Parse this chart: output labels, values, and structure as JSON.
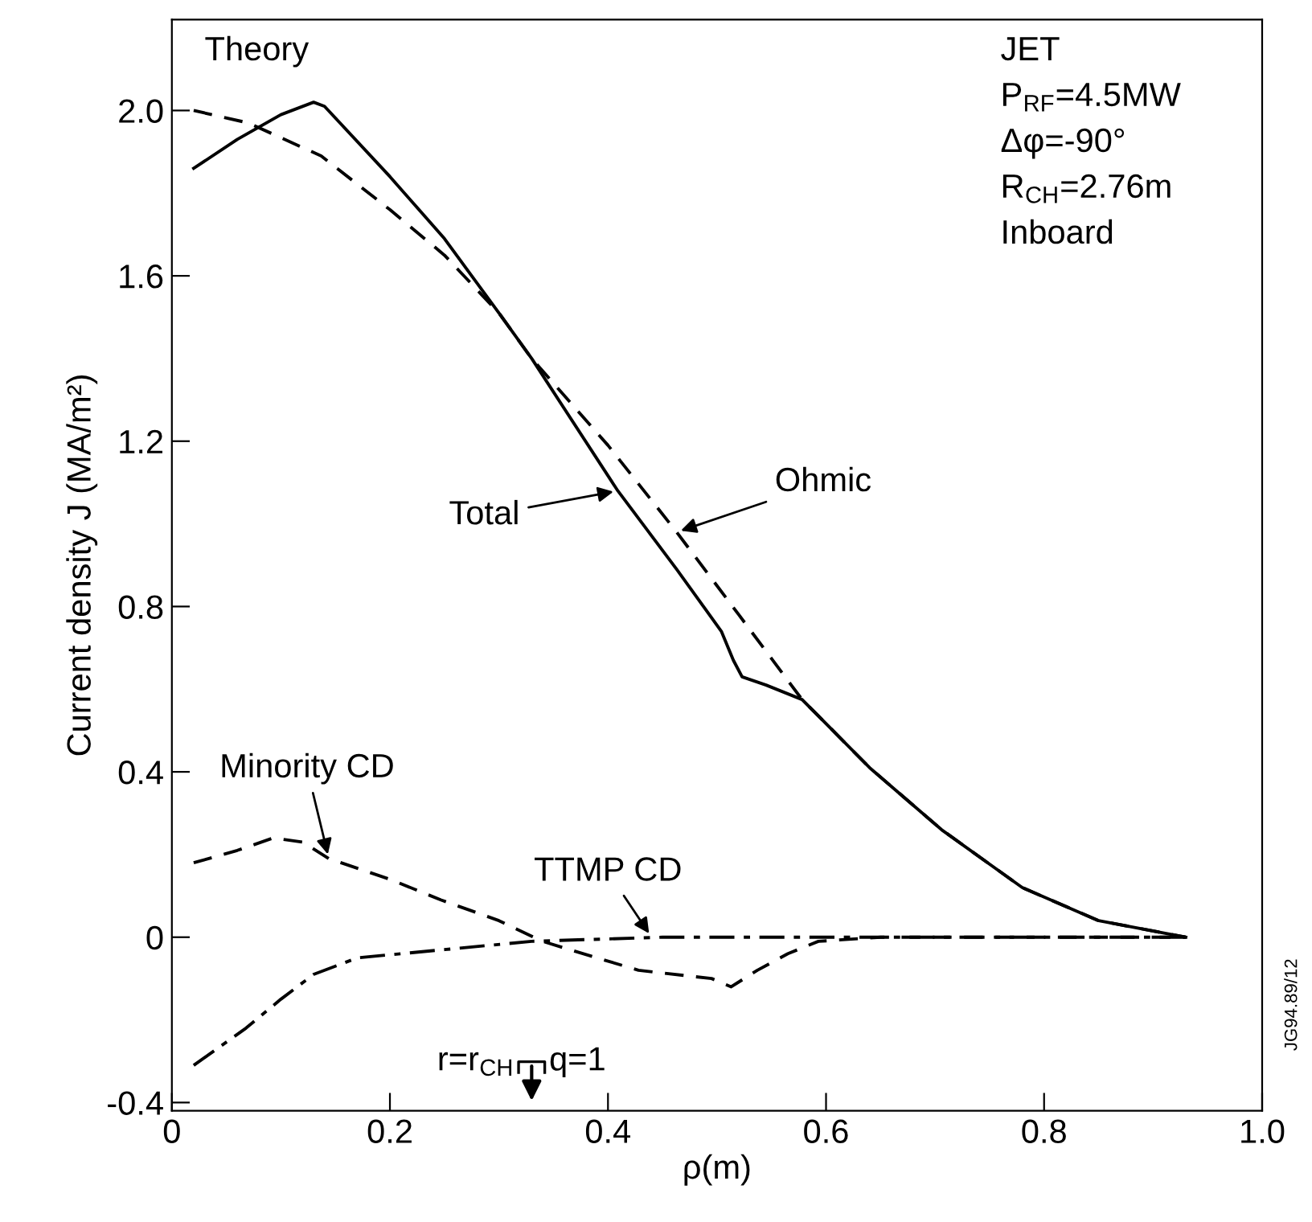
{
  "chart_data": {
    "type": "line",
    "xlabel": "ρ(m)",
    "ylabel": "Current density J (MA/m²)",
    "xlim": [
      0,
      1.0
    ],
    "ylim": [
      -0.42,
      2.22
    ],
    "xticks": [
      0,
      0.2,
      0.4,
      0.6,
      0.8,
      {
        "value": 1.0,
        "label": "1.0"
      }
    ],
    "yticks": [
      {
        "value": -0.4,
        "label": "-0.4"
      },
      0,
      0.4,
      0.8,
      1.2,
      1.6,
      {
        "value": 2.0,
        "label": "2.0"
      }
    ],
    "grid": false,
    "legend": false,
    "series": [
      {
        "color": "#000000",
        "line_style": "solid",
        "x": [
          0.02,
          0.06,
          0.1,
          0.13,
          0.14,
          0.2,
          0.25,
          0.3,
          0.33,
          0.409,
          0.463,
          0.504,
          0.515,
          0.523,
          0.545,
          0.578,
          0.64,
          0.706,
          0.78,
          0.85,
          0.93
        ],
        "values": [
          1.86,
          1.93,
          1.99,
          2.02,
          2.01,
          1.84,
          1.69,
          1.51,
          1.4,
          1.08,
          0.89,
          0.74,
          0.67,
          0.63,
          0.61,
          0.575,
          0.41,
          0.26,
          0.12,
          0.04,
          0.0
        ]
      },
      {
        "color": "#000000",
        "line_style": "dashed",
        "x": [
          0.02,
          0.07,
          0.137,
          0.2,
          0.25,
          0.3,
          0.33,
          0.4,
          0.463,
          0.52,
          0.578,
          0.64,
          0.706,
          0.78,
          0.85,
          0.93
        ],
        "values": [
          2.0,
          1.97,
          1.89,
          1.76,
          1.65,
          1.51,
          1.4,
          1.19,
          0.98,
          0.78,
          0.575,
          0.41,
          0.26,
          0.12,
          0.04,
          0.0
        ]
      },
      {
        "color": "#000000",
        "line_style": "dashed",
        "x": [
          0.02,
          0.06,
          0.093,
          0.12,
          0.144,
          0.2,
          0.247,
          0.3,
          0.34,
          0.39,
          0.428,
          0.495,
          0.513,
          0.537,
          0.565,
          0.593,
          0.65,
          0.8,
          0.93
        ],
        "values": [
          0.18,
          0.21,
          0.24,
          0.23,
          0.19,
          0.14,
          0.09,
          0.04,
          -0.01,
          -0.05,
          -0.08,
          -0.1,
          -0.12,
          -0.08,
          -0.04,
          -0.01,
          0.0,
          0.0,
          0.0
        ]
      },
      {
        "color": "#000000",
        "line_style": "dashdot",
        "x": [
          0.02,
          0.068,
          0.1,
          0.13,
          0.17,
          0.25,
          0.33,
          0.45,
          0.6,
          0.8,
          0.93
        ],
        "values": [
          -0.31,
          -0.22,
          -0.15,
          -0.09,
          -0.05,
          -0.03,
          -0.01,
          0.0,
          0.0,
          0.0,
          0.0
        ]
      }
    ],
    "annotations": [
      "Theory",
      "JET",
      "P$_{RF}$=4.5MW",
      "Δφ=-90°",
      "R$_{CH}$=2.76m",
      "Inboard",
      {
        "text": "Total",
        "x": 0.409,
        "y": 1.08
      },
      {
        "text": "Ohmic",
        "x": 0.463,
        "y": 0.98
      },
      {
        "text": "Minority CD",
        "x": 0.144,
        "y": 0.19
      },
      {
        "text": "TTMP CD",
        "x": 0.44,
        "y": 0.0
      },
      "r=r$_{CH}$",
      "q=1",
      "JG94.89/12"
    ]
  }
}
